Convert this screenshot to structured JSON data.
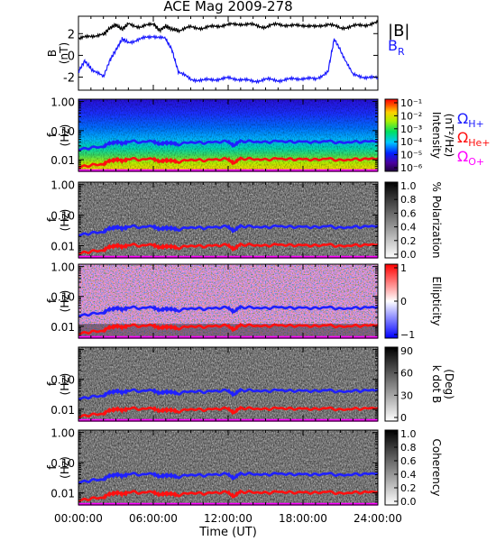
{
  "title": "ACE Mag 2009-278",
  "xlabel": "Time (UT)",
  "colors": {
    "B_total": "#000000",
    "B_R": "#1a1aff",
    "H_plus": "#2020ff",
    "He_plus": "#ff1010",
    "O_plus": "#ff00ff"
  },
  "chart_data": [
    {
      "type": "line",
      "panel": "B",
      "ylabel": "B",
      "yunit": "(nT)",
      "ylim": [
        -3.2,
        3.6
      ],
      "yticks": [
        "2",
        "0",
        "-2"
      ],
      "xlim": [
        0,
        24
      ],
      "xticks": [
        "00:00:00",
        "06:00:00",
        "12:00:00",
        "18:00:00",
        "24:00:00"
      ],
      "legend": [
        "|B|",
        "B_R"
      ],
      "series": [
        {
          "name": "|B|",
          "x": [
            0,
            1,
            2,
            2.5,
            3,
            3.5,
            4,
            5,
            6,
            6.5,
            7,
            7.5,
            8,
            9,
            10,
            11,
            12,
            13,
            14,
            15,
            16,
            17,
            18,
            19,
            20,
            21,
            22,
            23,
            24
          ],
          "y": [
            1.5,
            1.8,
            1.9,
            2.5,
            2.8,
            2.4,
            2.9,
            2.6,
            2.9,
            2.3,
            2.7,
            2.4,
            2.3,
            2.6,
            2.5,
            2.7,
            2.8,
            2.9,
            2.8,
            2.6,
            2.9,
            2.7,
            2.8,
            2.6,
            2.9,
            2.5,
            2.7,
            2.8,
            3.0
          ]
        },
        {
          "name": "B_R",
          "x": [
            0,
            0.5,
            1,
            2,
            2.5,
            3,
            3.5,
            4,
            5,
            6,
            7,
            7.5,
            8,
            9,
            10,
            11,
            12,
            13,
            14,
            15,
            16,
            17,
            18,
            19,
            20,
            20.5,
            21,
            22,
            23,
            24
          ],
          "y": [
            -1.5,
            -0.5,
            -1.2,
            -2.0,
            -0.5,
            0.5,
            1.5,
            1.2,
            1.5,
            1.8,
            1.5,
            0.5,
            -1.5,
            -2.2,
            -2.3,
            -2.2,
            -2.1,
            -2.2,
            -2.4,
            -2.2,
            -2.3,
            -2.2,
            -2.1,
            -2.2,
            -1.5,
            1.5,
            0.5,
            -1.8,
            -2.0,
            -2.1
          ]
        }
      ]
    },
    {
      "type": "heatmap",
      "panel": "Intensity",
      "ylabel": "f",
      "yunit": "(Hz)",
      "ylog": true,
      "ylim": [
        0.004,
        1.2
      ],
      "yticks": [
        "1.00",
        "0.10",
        "0.01"
      ],
      "colorbar": {
        "label": "Intensity",
        "unit": "(nT²/Hz)",
        "ticks": [
          "10⁻¹",
          "10⁻²",
          "10⁻³",
          "10⁻⁴",
          "10⁻⁵",
          "10⁻⁶"
        ]
      },
      "legend": [
        "ΩH+",
        "ΩHe+",
        "ΩO+"
      ]
    },
    {
      "type": "heatmap",
      "panel": "Polarization",
      "ylabel": "f",
      "yunit": "(Hz)",
      "ylog": true,
      "ylim": [
        0.004,
        1.2
      ],
      "yticks": [
        "1.00",
        "0.10",
        "0.01"
      ],
      "colorbar": {
        "label": "% Polarization",
        "unit": "",
        "ticks": [
          "1.0",
          "0.8",
          "0.6",
          "0.4",
          "0.2",
          "0.0"
        ]
      }
    },
    {
      "type": "heatmap",
      "panel": "Ellipticity",
      "ylabel": "f",
      "yunit": "(Hz)",
      "ylog": true,
      "ylim": [
        0.004,
        1.2
      ],
      "yticks": [
        "1.00",
        "0.10",
        "0.01"
      ],
      "colorbar": {
        "label": "Ellipticity",
        "unit": "",
        "ticks": [
          "1",
          "0",
          "−1"
        ]
      }
    },
    {
      "type": "heatmap",
      "panel": "k dot B",
      "ylabel": "f",
      "yunit": "(Hz)",
      "ylog": true,
      "ylim": [
        0.004,
        1.2
      ],
      "yticks": [
        "0.10",
        "0.01"
      ],
      "colorbar": {
        "label": "k dot B",
        "unit": "(Deg)",
        "ticks": [
          "90",
          "60",
          "30",
          "0"
        ]
      }
    },
    {
      "type": "heatmap",
      "panel": "Coherency",
      "ylabel": "f",
      "yunit": "(Hz)",
      "ylog": true,
      "ylim": [
        0.004,
        1.2
      ],
      "yticks": [
        "1.00",
        "0.10",
        "0.01"
      ],
      "colorbar": {
        "label": "Coherency",
        "unit": "",
        "ticks": [
          "1.0",
          "0.8",
          "0.6",
          "0.4",
          "0.2",
          "0.0"
        ]
      }
    }
  ],
  "gyrofrequency": {
    "x": [
      0,
      1,
      2,
      2.5,
      3,
      3.5,
      4,
      5,
      6,
      6.5,
      7,
      7.5,
      8,
      9,
      10,
      11,
      12,
      12.5,
      13,
      14,
      15,
      16,
      17,
      18,
      19,
      20,
      21,
      22,
      23,
      24
    ],
    "H_plus": [
      0.022,
      0.026,
      0.028,
      0.036,
      0.042,
      0.035,
      0.044,
      0.04,
      0.044,
      0.033,
      0.04,
      0.036,
      0.034,
      0.04,
      0.038,
      0.041,
      0.042,
      0.03,
      0.044,
      0.042,
      0.04,
      0.044,
      0.041,
      0.042,
      0.04,
      0.044,
      0.038,
      0.041,
      0.042,
      0.045
    ],
    "He_plus": [
      0.0056,
      0.0065,
      0.007,
      0.009,
      0.0105,
      0.0088,
      0.011,
      0.01,
      0.011,
      0.0083,
      0.01,
      0.009,
      0.0085,
      0.01,
      0.0095,
      0.0103,
      0.0105,
      0.0075,
      0.011,
      0.0105,
      0.01,
      0.011,
      0.0103,
      0.0105,
      0.01,
      0.011,
      0.0095,
      0.0103,
      0.0105,
      0.0112
    ],
    "O_plus": [
      0.0014,
      0.0016,
      0.0018,
      0.0022,
      0.0026,
      0.0022,
      0.0027,
      0.0025,
      0.0027,
      0.0021,
      0.0025,
      0.0022,
      0.0021,
      0.0025,
      0.0024,
      0.0026,
      0.0026,
      0.0019,
      0.0027,
      0.0026,
      0.0025,
      0.0027,
      0.0026,
      0.0026,
      0.0025,
      0.0027,
      0.0024,
      0.0026,
      0.0026,
      0.0028
    ]
  }
}
